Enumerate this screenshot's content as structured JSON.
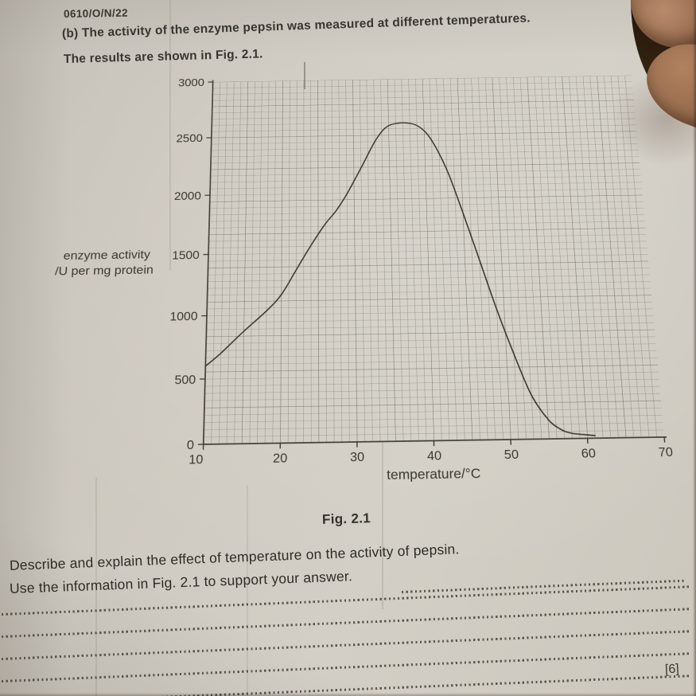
{
  "document": {
    "paper_code": "0610/O/N/22",
    "intro": {
      "line1": "(b) The activity of the enzyme pepsin was measured at different temperatures.",
      "line2": "The results are shown in Fig. 2.1."
    },
    "figure": {
      "caption": "Fig. 2.1",
      "y_axis_label_line1": "enzyme activity",
      "y_axis_label_line2": "/U per mg protein",
      "x_axis_label": "temperature/°C"
    },
    "question": {
      "line1": "Describe and explain the effect of temperature on the activity of pepsin.",
      "line2": "Use the information in Fig. 2.1 to support your answer.",
      "marks": "[6]",
      "answer_line_count": 5
    }
  },
  "chart_data": {
    "type": "line",
    "title": "Fig. 2.1",
    "xlabel": "temperature/°C",
    "ylabel": "enzyme activity /U per mg protein",
    "xlim": [
      10,
      70
    ],
    "ylim": [
      0,
      3000
    ],
    "x_ticks": [
      10,
      20,
      30,
      40,
      50,
      60,
      70
    ],
    "y_ticks": [
      0,
      500,
      1000,
      1500,
      2000,
      2500,
      3000
    ],
    "grid": "fine graph-paper grid, small squares",
    "legend": "none",
    "series": [
      {
        "name": "pepsin activity",
        "points": [
          [
            10,
            600
          ],
          [
            12,
            700
          ],
          [
            15,
            870
          ],
          [
            18,
            1030
          ],
          [
            20,
            1160
          ],
          [
            22,
            1360
          ],
          [
            24,
            1560
          ],
          [
            26,
            1740
          ],
          [
            27.5,
            1850
          ],
          [
            29,
            1990
          ],
          [
            31,
            2210
          ],
          [
            33,
            2440
          ],
          [
            34.5,
            2560
          ],
          [
            36,
            2600
          ],
          [
            38,
            2600
          ],
          [
            39.5,
            2560
          ],
          [
            41,
            2450
          ],
          [
            43,
            2190
          ],
          [
            45,
            1820
          ],
          [
            47,
            1420
          ],
          [
            49,
            1020
          ],
          [
            51,
            660
          ],
          [
            53,
            340
          ],
          [
            55,
            150
          ],
          [
            56.5,
            75
          ],
          [
            58,
            40
          ],
          [
            61,
            20
          ]
        ]
      }
    ],
    "readings": {
      "activity_at_10C": 600,
      "peak_activity": 2600,
      "optimum_temperature_range_C": [
        35,
        39
      ],
      "activity_near_zero_above_C": 58
    }
  },
  "photo": {
    "colors": {
      "paper": "#cfcac1",
      "ink": "#35332c",
      "grid_line": "#4c483f",
      "curve": "#3b3830",
      "skin": "#a0755a",
      "corner_shadow": "#2a1a10"
    },
    "elements": "fingers holding the page at top-right corner"
  }
}
